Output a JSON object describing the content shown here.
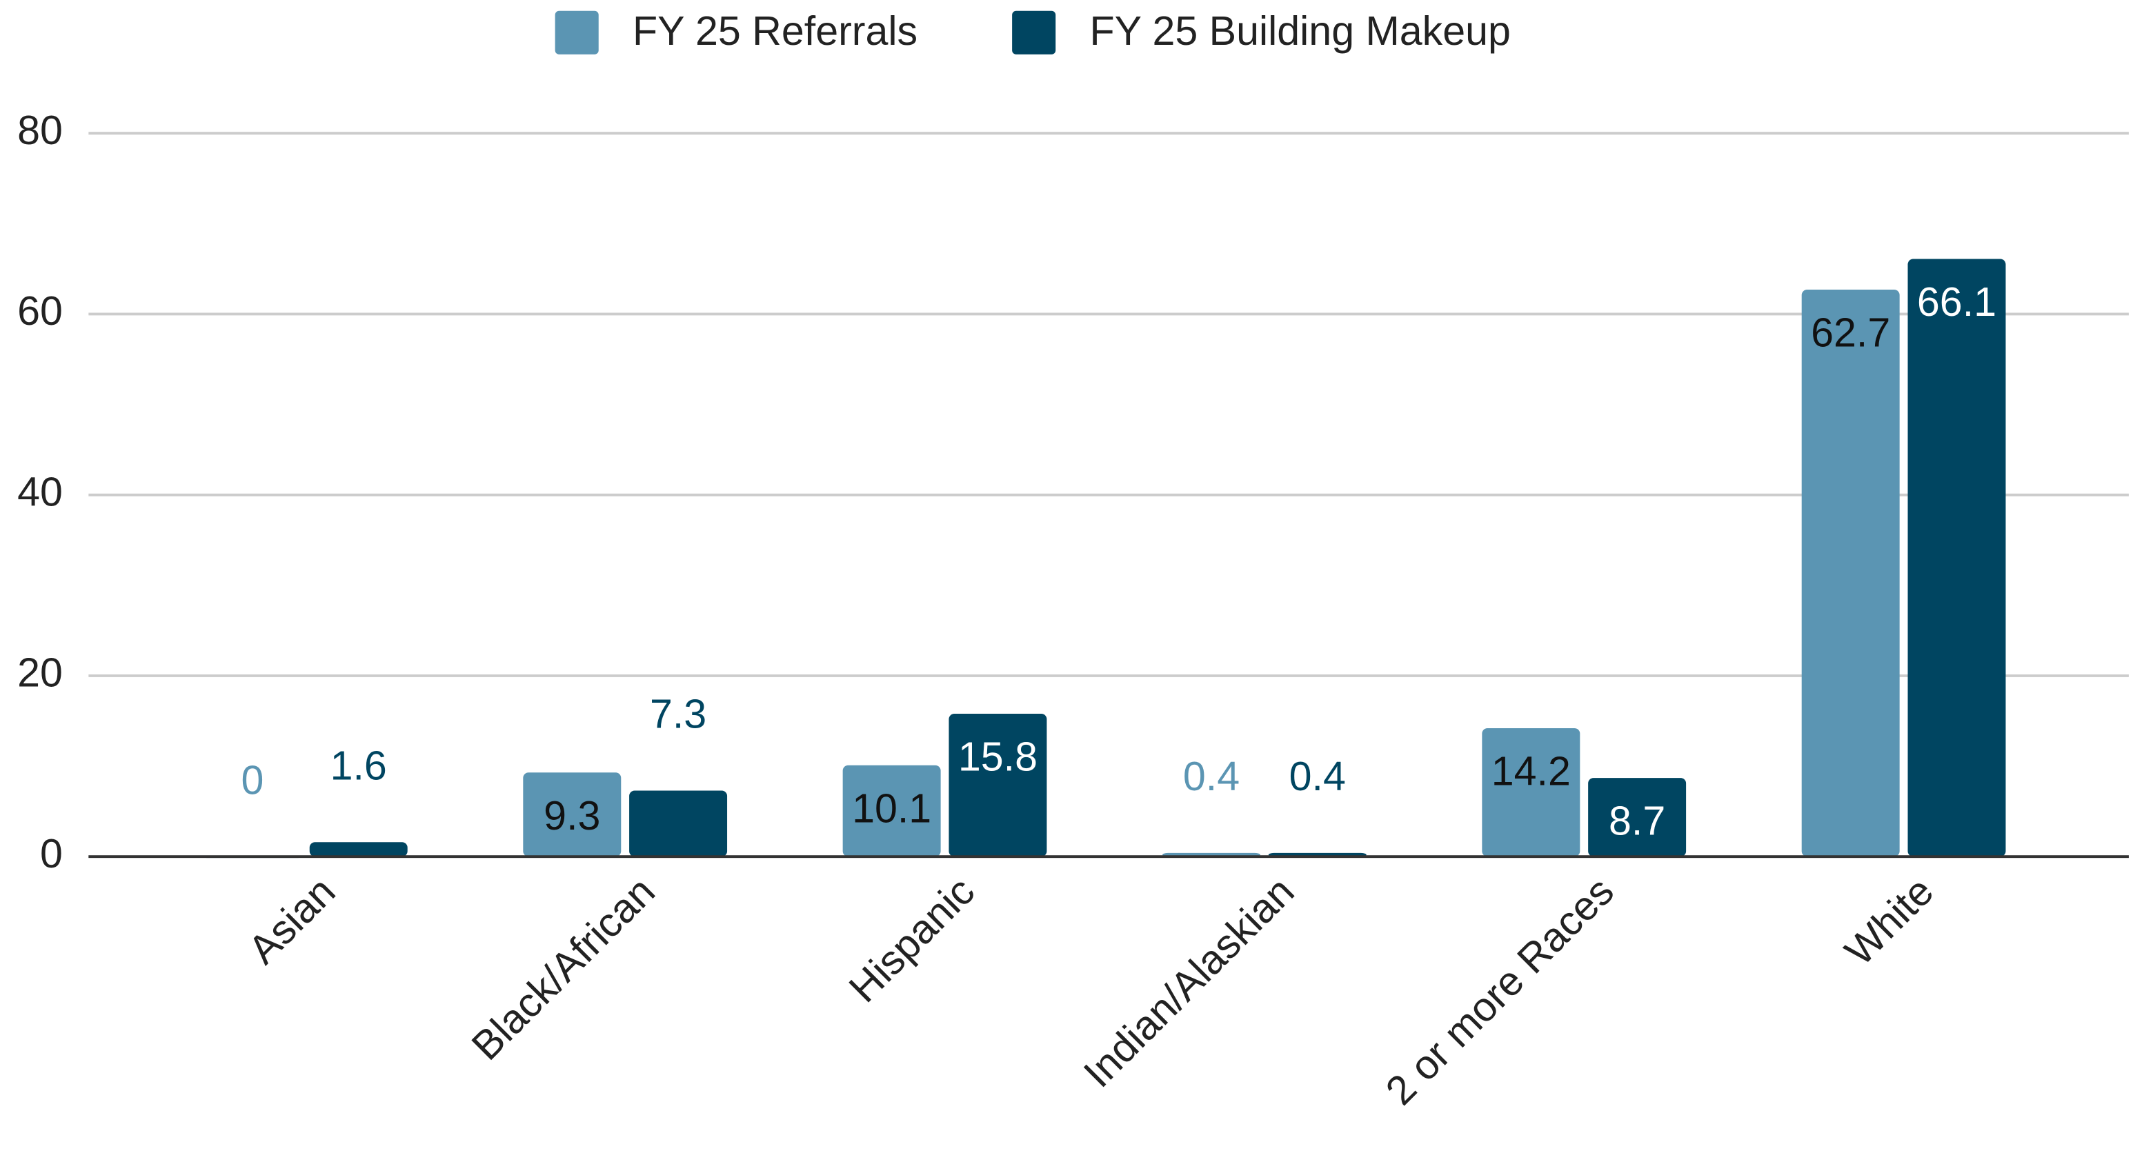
{
  "chart_data": {
    "type": "bar",
    "categories": [
      "Asian",
      "Black/African",
      "Hispanic",
      "Indian/Alaskian",
      "2 or more Races",
      "White"
    ],
    "series": [
      {
        "name": "FY 25 Referrals",
        "color": "#5b95b3",
        "values": [
          0,
          9.3,
          10.1,
          0.4,
          14.2,
          62.7
        ]
      },
      {
        "name": "FY 25 Building Makeup",
        "color": "#004561",
        "values": [
          1.6,
          7.3,
          15.8,
          0.4,
          8.7,
          66.1
        ]
      }
    ],
    "ylim": [
      0,
      80
    ],
    "yticks": [
      0,
      20,
      40,
      60,
      80
    ],
    "grid": true,
    "legend": "top"
  }
}
